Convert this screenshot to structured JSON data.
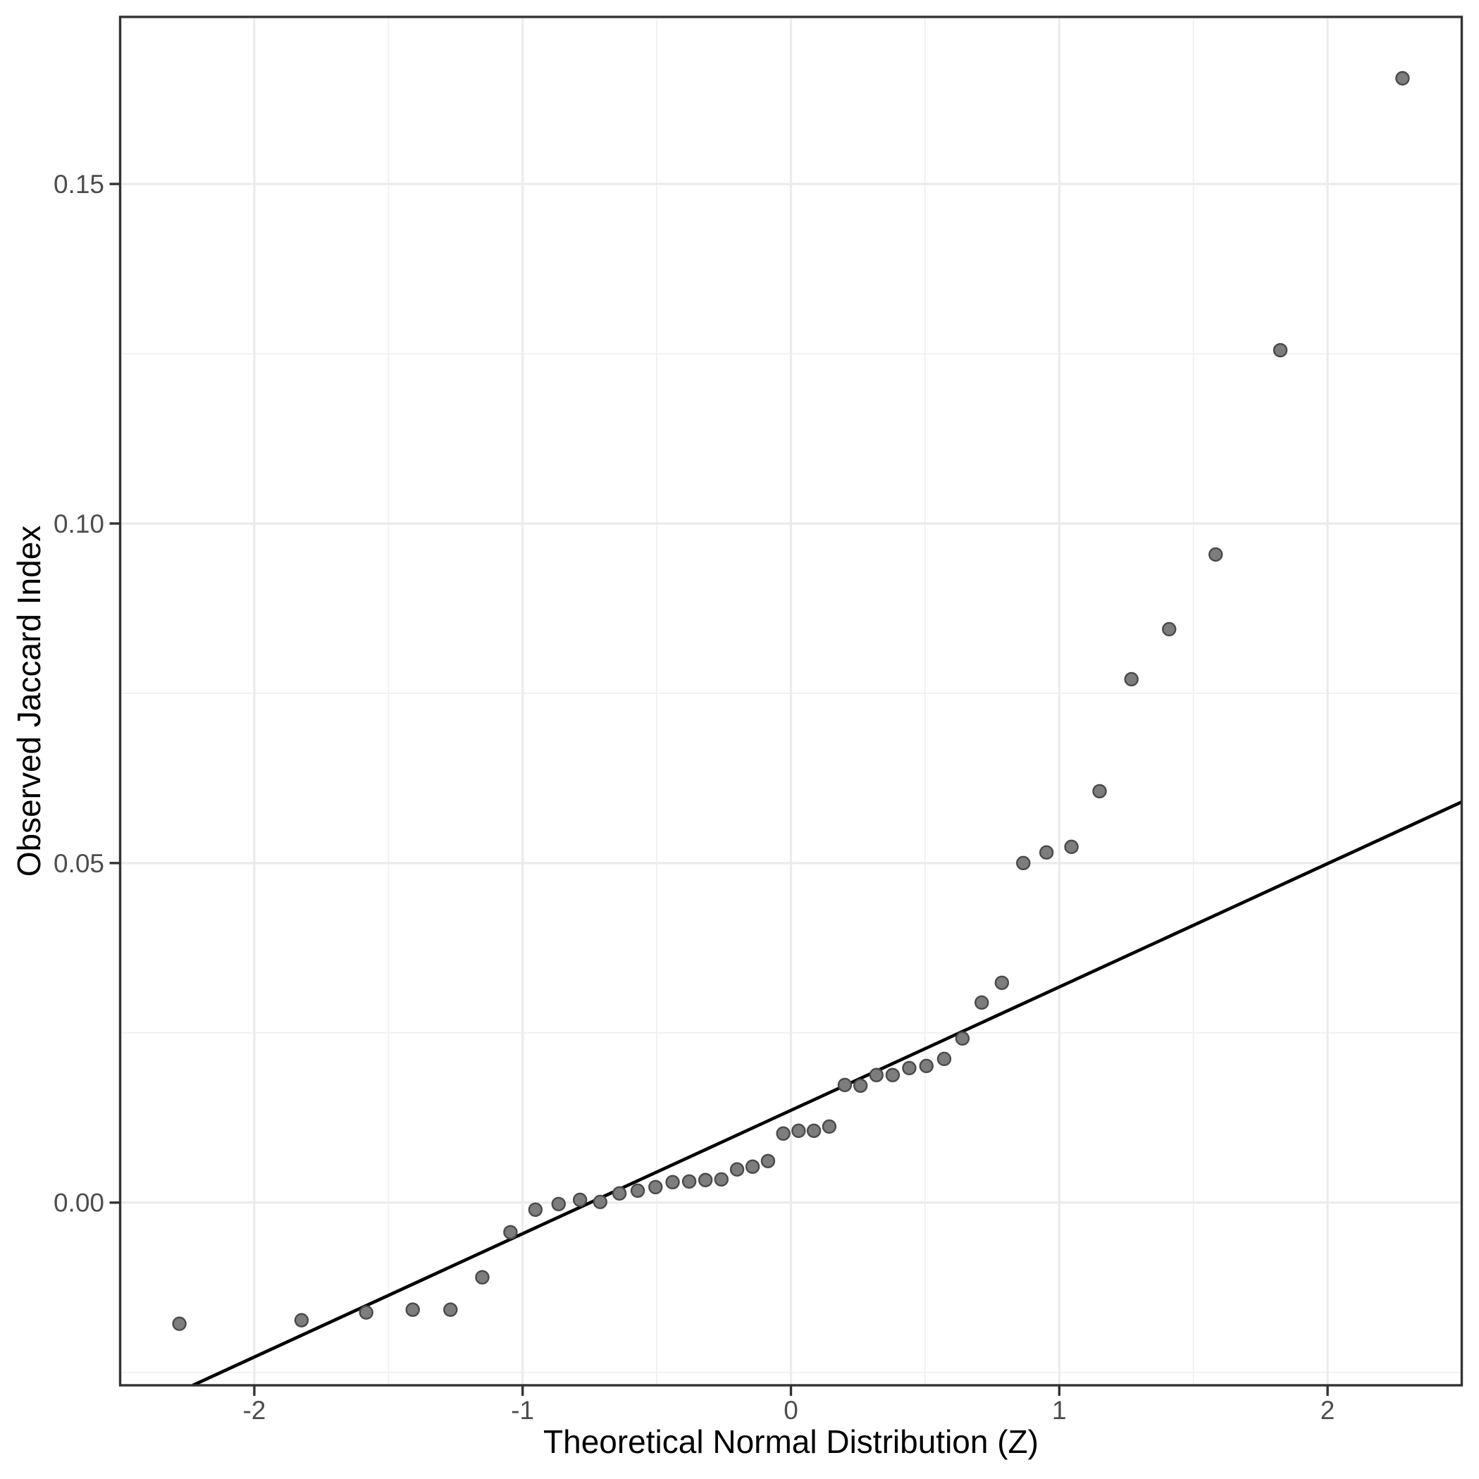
{
  "figure": {
    "background": "#ffffff",
    "x_axis_title": "Theoretical Normal Distribution (Z)",
    "y_axis_title": "Observed Jaccard Index"
  },
  "chart_data": {
    "type": "scatter",
    "title": "",
    "xlabel": "Theoretical Normal Distribution (Z)",
    "ylabel": "Observed Jaccard Index",
    "xlim": [
      -2.5,
      2.5
    ],
    "ylim": [
      -0.0269,
      0.1746
    ],
    "grid": "major+minor",
    "legend": "none",
    "x_major_ticks": [
      -2,
      -1,
      0,
      1,
      2
    ],
    "x_tick_labels": [
      "-2",
      "-1",
      "0",
      "1",
      "2"
    ],
    "x_minor_ticks": [
      -1.5,
      -0.5,
      0.5,
      1.5
    ],
    "y_major_ticks": [
      0.0,
      0.05,
      0.1,
      0.15
    ],
    "y_tick_labels": [
      "0.00",
      "0.05",
      "0.10",
      "0.15"
    ],
    "y_minor_ticks": [
      -0.025,
      0.025,
      0.075,
      0.125
    ],
    "reference_line": {
      "description": "qq-line",
      "intercept": 0.0136,
      "slope": 0.0182,
      "endpoints": [
        [
          -2.229,
          -0.0269
        ],
        [
          2.5,
          0.059
        ]
      ]
    },
    "points": [
      [
        -2.2792,
        -0.01784
      ],
      [
        -1.8239,
        -0.01732
      ],
      [
        -1.5829,
        -0.01618
      ],
      [
        -1.4096,
        -0.01577
      ],
      [
        -1.269,
        -0.01577
      ],
      [
        -1.1503,
        -0.011
      ],
      [
        -1.0454,
        -0.00436
      ],
      [
        -0.9523,
        -0.00104
      ],
      [
        -0.8659,
        -0.00021
      ],
      [
        -0.7861,
        0.00041
      ],
      [
        -0.7109,
        0.0001
      ],
      [
        -0.6392,
        0.00135
      ],
      [
        -0.571,
        0.00176
      ],
      [
        -0.5048,
        0.00228
      ],
      [
        -0.441,
        0.00301
      ],
      [
        -0.3791,
        0.00311
      ],
      [
        -0.3186,
        0.00332
      ],
      [
        -0.2592,
        0.00342
      ],
      [
        -0.2007,
        0.00488
      ],
      [
        -0.1429,
        0.00529
      ],
      [
        -0.0855,
        0.00612
      ],
      [
        -0.0285,
        0.01017
      ],
      [
        0.0285,
        0.01058
      ],
      [
        0.0855,
        0.01058
      ],
      [
        0.1429,
        0.0112
      ],
      [
        0.2007,
        0.01732
      ],
      [
        0.2592,
        0.01722
      ],
      [
        0.3186,
        0.01878
      ],
      [
        0.3791,
        0.01878
      ],
      [
        0.441,
        0.01981
      ],
      [
        0.5048,
        0.02012
      ],
      [
        0.571,
        0.02116
      ],
      [
        0.6392,
        0.02417
      ],
      [
        0.7109,
        0.02946
      ],
      [
        0.7861,
        0.03237
      ],
      [
        0.8659,
        0.05
      ],
      [
        0.9523,
        0.05156
      ],
      [
        1.0454,
        0.05239
      ],
      [
        1.1503,
        0.06058
      ],
      [
        1.269,
        0.07707
      ],
      [
        1.4096,
        0.08444
      ],
      [
        1.5829,
        0.09544
      ],
      [
        1.8239,
        0.12552
      ],
      [
        2.2792,
        0.16556
      ]
    ],
    "style": {
      "point_fill": "#7d7d7d",
      "point_stroke": "#4a4a4a",
      "point_radius": 9,
      "point_stroke_width": 2.4,
      "line_color": "#000000",
      "line_width": 4.6,
      "grid_major_color": "#ebebeb",
      "grid_major_width": 3.2,
      "grid_minor_color": "#f0f0f0",
      "grid_minor_width": 1.8,
      "border_color": "#333333",
      "border_width": 3.4,
      "tick_color": "#333333",
      "tick_width": 3.4,
      "tick_length": 15,
      "tick_label_color": "#4d4d4d",
      "title_color": "#000000",
      "background": "#ffffff"
    }
  }
}
